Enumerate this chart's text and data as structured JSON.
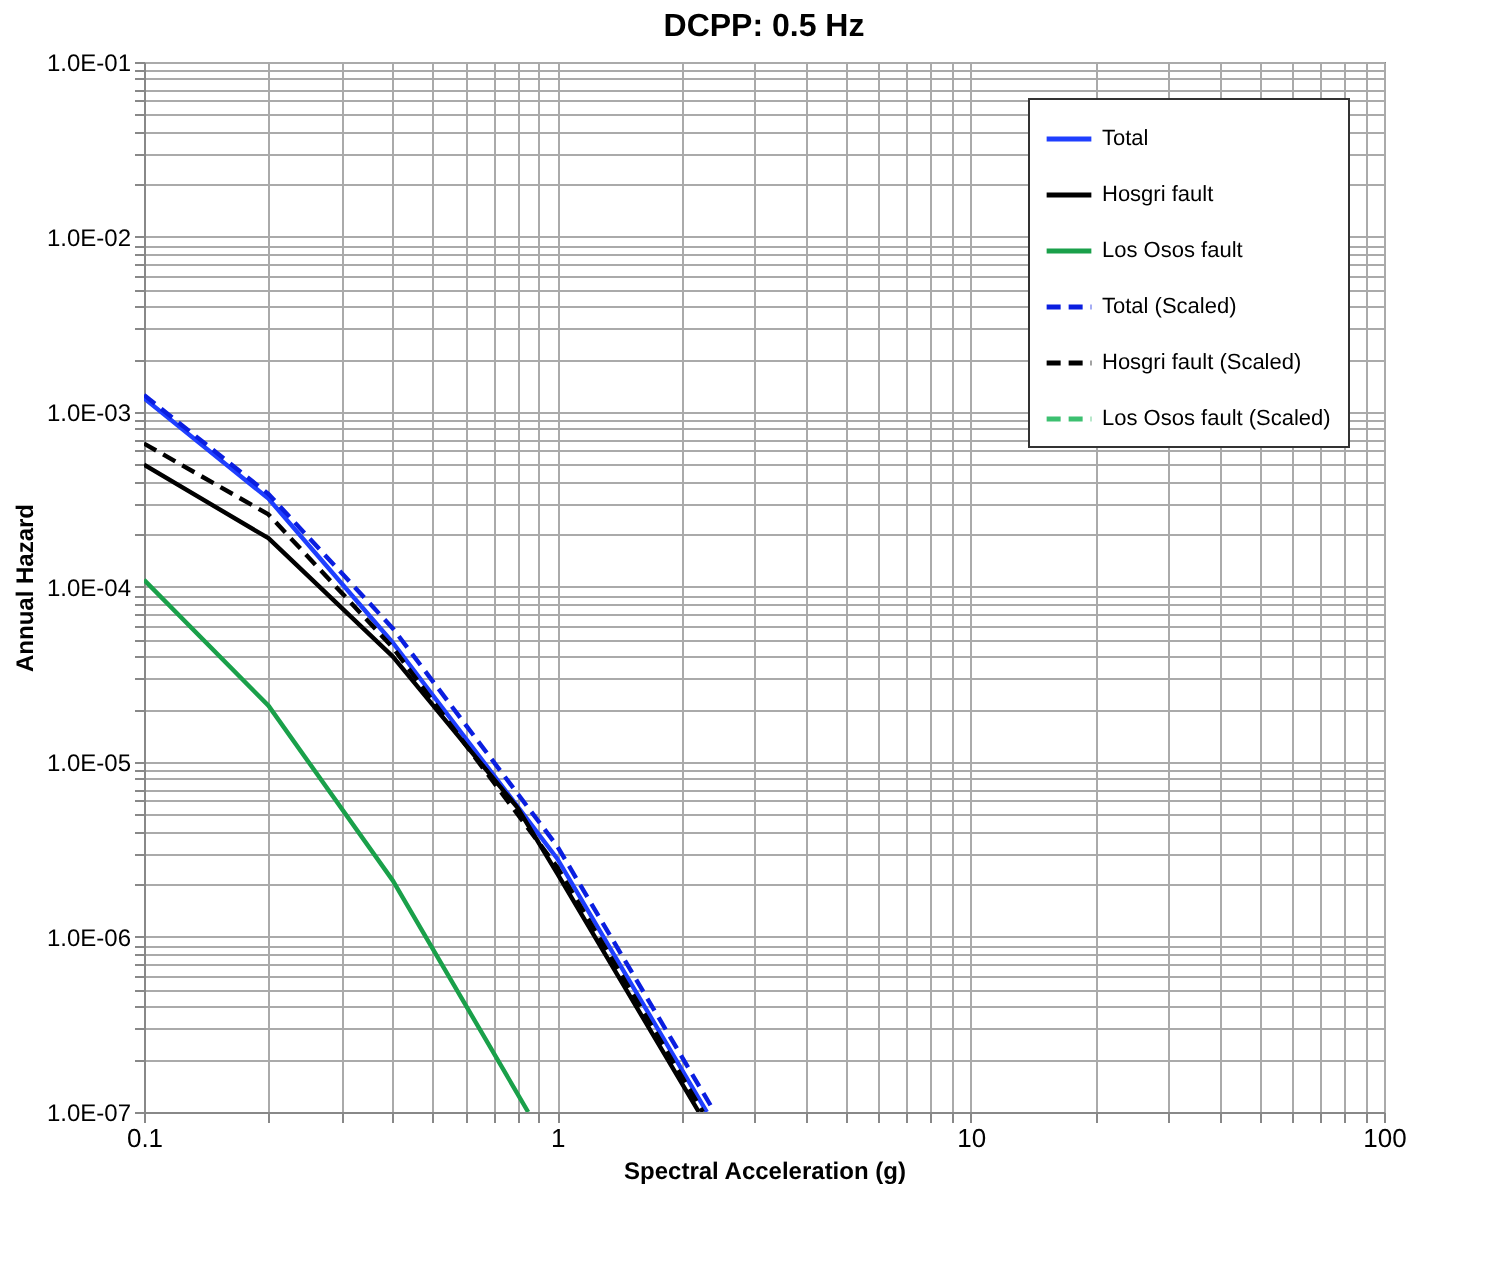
{
  "chart_data": {
    "type": "line",
    "title": "DCPP: 0.5 Hz",
    "xlabel": "Spectral Acceleration (g)",
    "ylabel": "Annual Hazard",
    "log": "xy",
    "grid": true,
    "legend": "top right",
    "xlim": [
      0.1,
      100
    ],
    "ylim": [
      1e-07,
      0.1
    ],
    "xticks": [
      {
        "value": 0.1,
        "label": "0.1"
      },
      {
        "value": 0.2,
        "label": null
      },
      {
        "value": 0.3,
        "label": null
      },
      {
        "value": 0.4,
        "label": null
      },
      {
        "value": 0.5,
        "label": null
      },
      {
        "value": 0.6,
        "label": null
      },
      {
        "value": 0.7,
        "label": null
      },
      {
        "value": 0.8,
        "label": null
      },
      {
        "value": 0.9,
        "label": null
      },
      1,
      {
        "value": 2,
        "label": null
      },
      {
        "value": 3,
        "label": null
      },
      {
        "value": 4,
        "label": null
      },
      {
        "value": 5,
        "label": null
      },
      {
        "value": 6,
        "label": null
      },
      {
        "value": 7,
        "label": null
      },
      {
        "value": 8,
        "label": null
      },
      {
        "value": 9,
        "label": null
      },
      10,
      {
        "value": 20,
        "label": null
      },
      {
        "value": 30,
        "label": null
      },
      {
        "value": 40,
        "label": null
      },
      {
        "value": 50,
        "label": null
      },
      {
        "value": 60,
        "label": null
      },
      {
        "value": 70,
        "label": null
      },
      {
        "value": 80,
        "label": null
      },
      {
        "value": 90,
        "label": null
      },
      100
    ],
    "yticks": [
      {
        "value": 1e-07,
        "label": "1.0E-07"
      },
      {
        "value": 2e-07,
        "label": null
      },
      {
        "value": 3e-07,
        "label": null
      },
      {
        "value": 4e-07,
        "label": null
      },
      {
        "value": 5e-07,
        "label": null
      },
      {
        "value": 6e-07,
        "label": null
      },
      {
        "value": 7e-07,
        "label": null
      },
      {
        "value": 8e-07,
        "label": null
      },
      {
        "value": 9e-07,
        "label": null
      },
      {
        "value": 1e-06,
        "label": "1.0E-06"
      },
      {
        "value": 2e-06,
        "label": null
      },
      {
        "value": 3e-06,
        "label": null
      },
      {
        "value": 4e-06,
        "label": null
      },
      {
        "value": 5e-06,
        "label": null
      },
      {
        "value": 6e-06,
        "label": null
      },
      {
        "value": 7e-06,
        "label": null
      },
      {
        "value": 8e-06,
        "label": null
      },
      {
        "value": 9e-06,
        "label": null
      },
      {
        "value": 1e-05,
        "label": "1.0E-05"
      },
      {
        "value": 2e-05,
        "label": null
      },
      {
        "value": 3e-05,
        "label": null
      },
      {
        "value": 4e-05,
        "label": null
      },
      {
        "value": 5e-05,
        "label": null
      },
      {
        "value": 6e-05,
        "label": null
      },
      {
        "value": 7e-05,
        "label": null
      },
      {
        "value": 8e-05,
        "label": null
      },
      {
        "value": 9e-05,
        "label": null
      },
      {
        "value": 0.0001,
        "label": "1.0E-04"
      },
      {
        "value": 0.0002,
        "label": null
      },
      {
        "value": 0.0003,
        "label": null
      },
      {
        "value": 0.0004,
        "label": null
      },
      {
        "value": 0.0005,
        "label": null
      },
      {
        "value": 0.0006,
        "label": null
      },
      {
        "value": 0.0007,
        "label": null
      },
      {
        "value": 0.0008,
        "label": null
      },
      {
        "value": 0.0009,
        "label": null
      },
      {
        "value": 0.001,
        "label": "1.0E-03"
      },
      {
        "value": 0.002,
        "label": null
      },
      {
        "value": 0.003,
        "label": null
      },
      {
        "value": 0.004,
        "label": null
      },
      {
        "value": 0.005,
        "label": null
      },
      {
        "value": 0.006,
        "label": null
      },
      {
        "value": 0.007,
        "label": null
      },
      {
        "value": 0.008,
        "label": null
      },
      {
        "value": 0.009,
        "label": null
      },
      {
        "value": 0.01,
        "label": "1.0E-02"
      },
      {
        "value": 0.02,
        "label": null
      },
      {
        "value": 0.03,
        "label": null
      },
      {
        "value": 0.04,
        "label": null
      },
      {
        "value": 0.05,
        "label": null
      },
      {
        "value": 0.06,
        "label": null
      },
      {
        "value": 0.07,
        "label": null
      },
      {
        "value": 0.08,
        "label": null
      },
      {
        "value": 0.09,
        "label": null
      },
      {
        "value": 0.1,
        "label": "1.0E-01"
      }
    ],
    "series": [
      {
        "name": "Total",
        "color": "#1f3fff",
        "line_style": "solid",
        "x": [
          0.1,
          0.2,
          0.4,
          1,
          2.3
        ],
        "values": [
          0.0012,
          0.00032,
          4.8e-05,
          2.8e-06,
          1e-07
        ]
      },
      {
        "name": "Hosgri fault",
        "color": "#000000",
        "line_style": "solid",
        "x": [
          0.1,
          0.2,
          0.4,
          0.8,
          1,
          2.2
        ],
        "values": [
          0.0005,
          0.00019,
          4e-05,
          5.5e-06,
          2.3e-06,
          1e-07
        ]
      },
      {
        "name": "Los Osos fault",
        "color": "#1aa04a",
        "line_style": "solid",
        "x": [
          0.1,
          0.2,
          0.4,
          0.85
        ],
        "values": [
          0.00011,
          2.1e-05,
          2.1e-06,
          1e-07
        ]
      },
      {
        "name": "Total (Scaled)",
        "color": "#0a1ee0",
        "line_style": "dashed",
        "x": [
          0.1,
          0.2,
          0.4,
          1,
          2.4
        ],
        "values": [
          0.00125,
          0.00034,
          5.8e-05,
          3.3e-06,
          1e-07
        ]
      },
      {
        "name": "Hosgri fault (Scaled)",
        "color": "#000000",
        "line_style": "dashed",
        "x": [
          0.1,
          0.2,
          0.4,
          1,
          2.25
        ],
        "values": [
          0.00066,
          0.00026,
          4.5e-05,
          2.5e-06,
          1e-07
        ]
      },
      {
        "name": "Los Osos fault (Scaled)",
        "color": "#3cc070",
        "line_style": "dashed",
        "values": [
          null
        ]
      }
    ]
  }
}
